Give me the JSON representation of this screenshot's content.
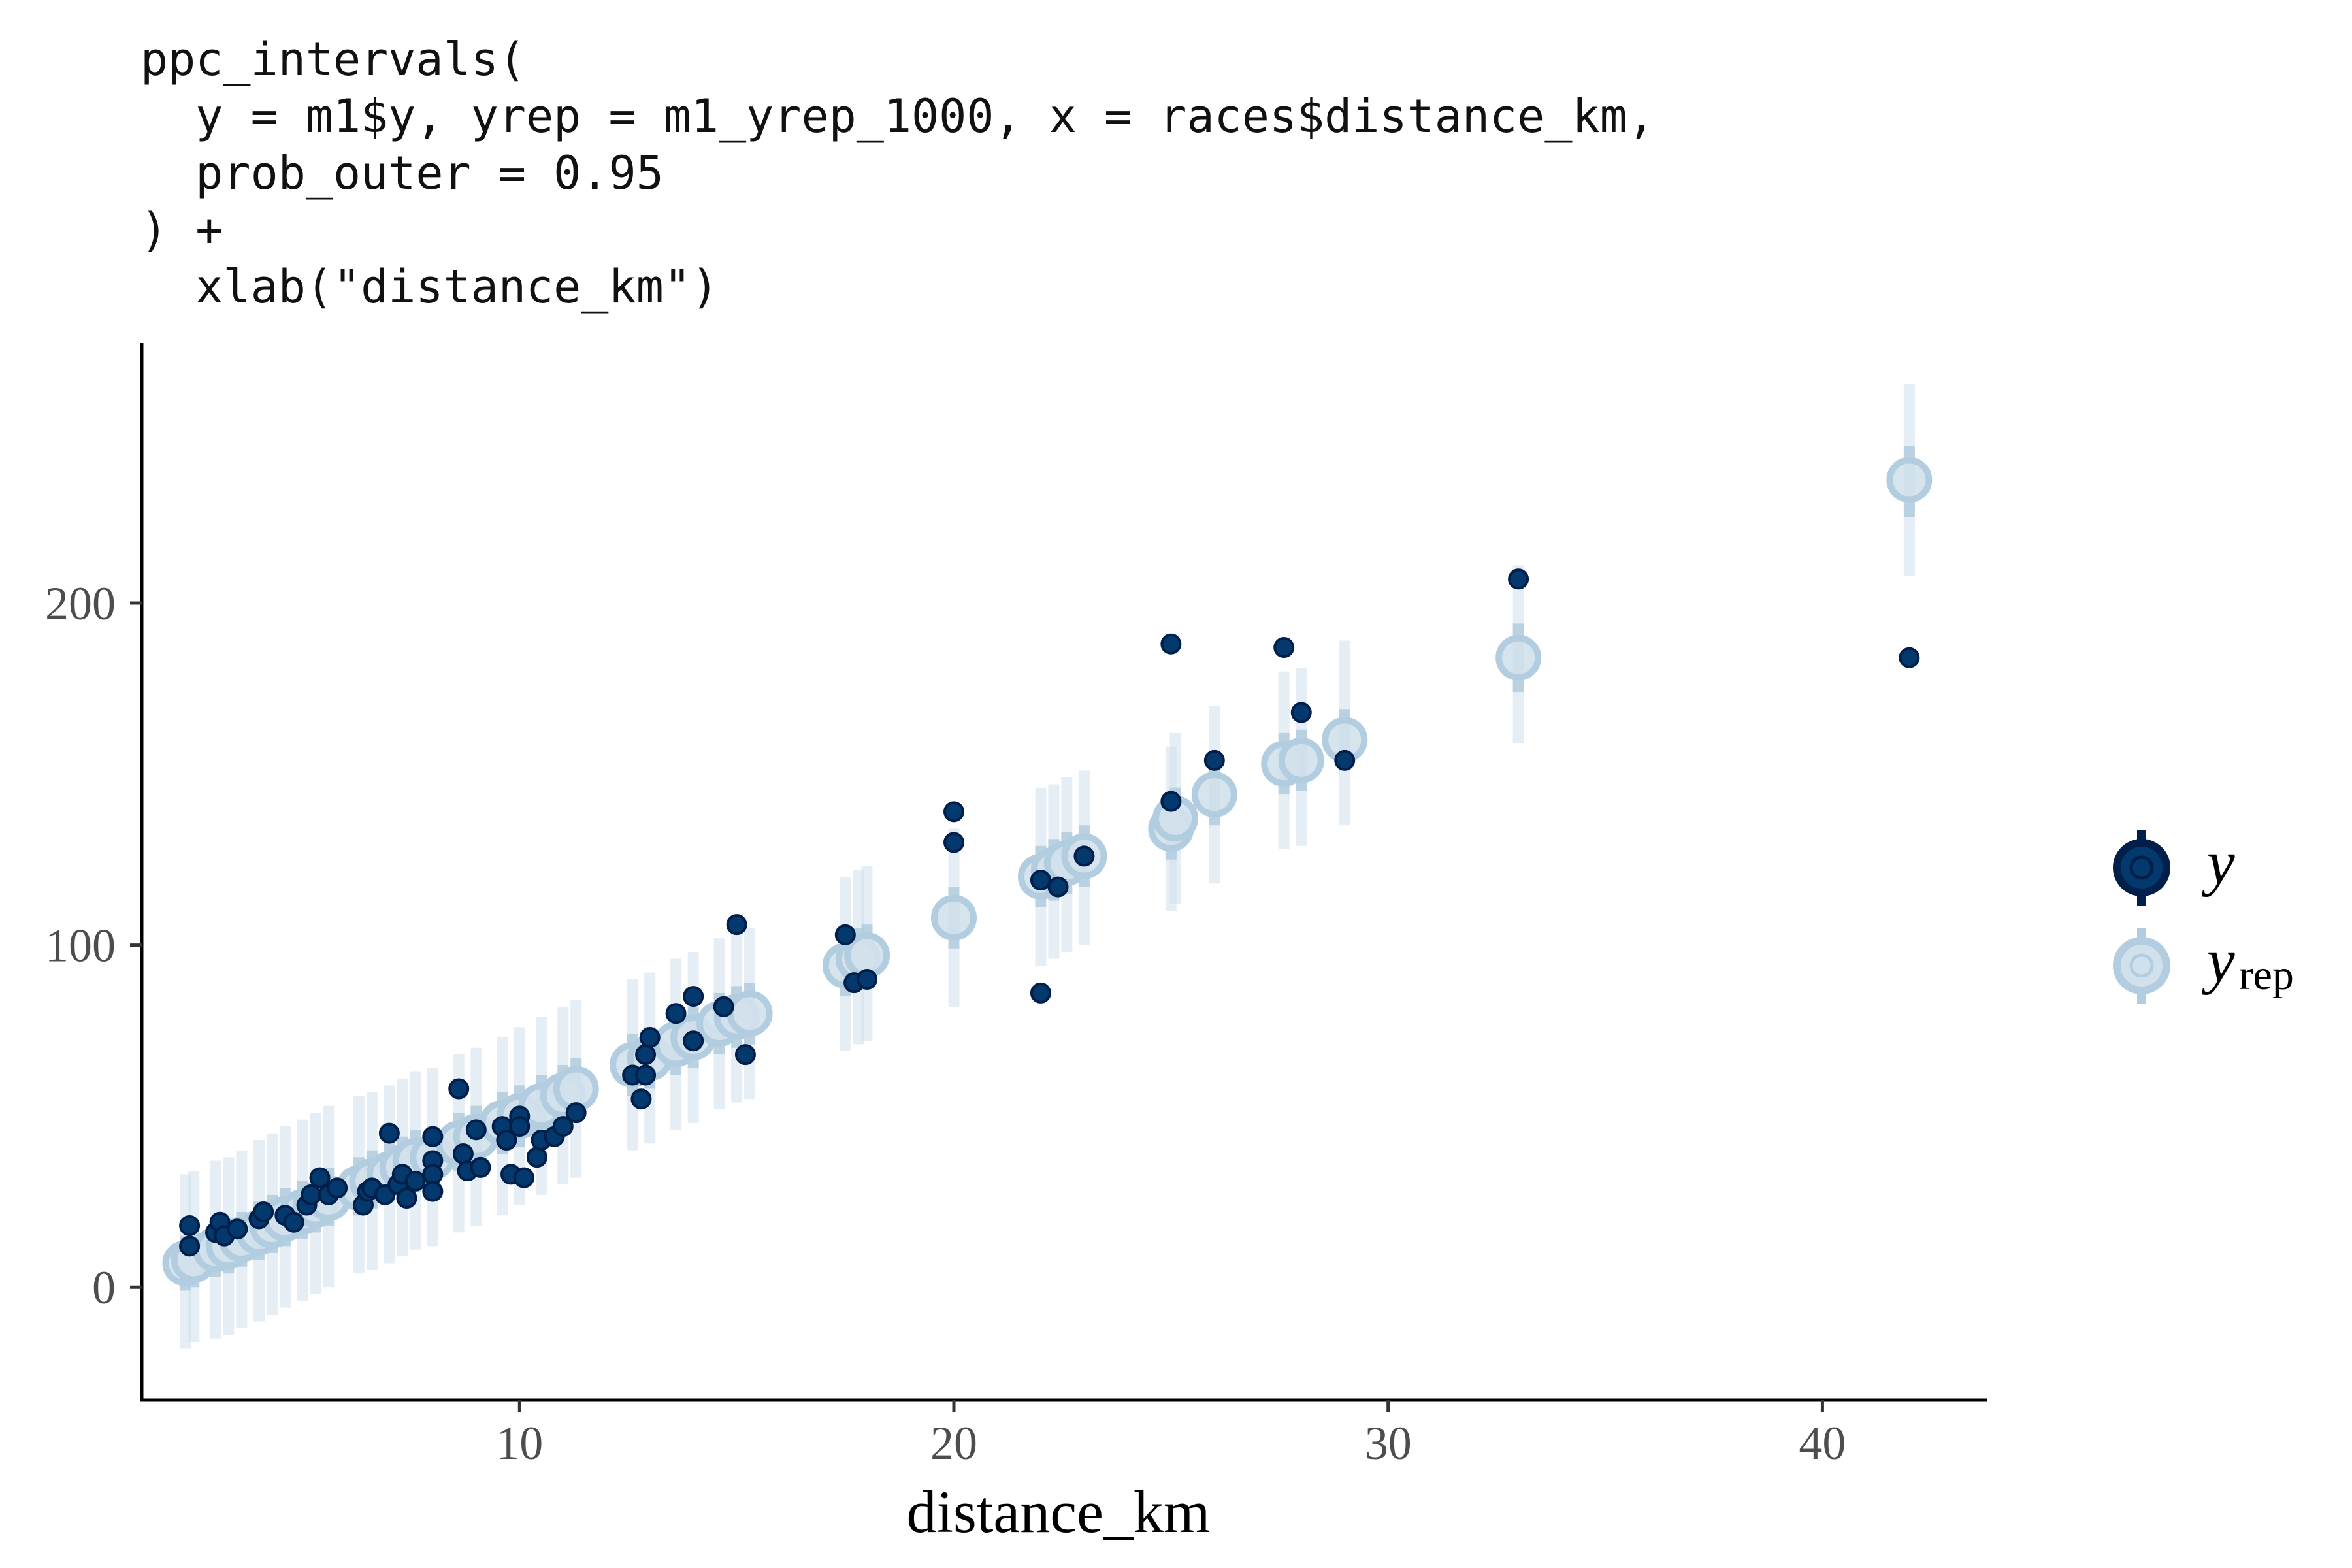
{
  "code_lines": [
    "ppc_intervals(",
    "  y = m1$y, yrep = m1_yrep_1000, x = races$distance_km,",
    "  prob_outer = 0.95",
    ") +",
    "  xlab(\"distance_km\")"
  ],
  "chart_data": {
    "type": "scatter",
    "xlabel": "distance_km",
    "ylabel": "",
    "xlim": [
      1.3,
      43.8
    ],
    "ylim": [
      -33,
      276
    ],
    "x_ticks": [
      10,
      20,
      30,
      40
    ],
    "y_ticks": [
      0,
      100,
      200
    ],
    "grid": false,
    "legend_position": "right",
    "colors": {
      "y_fill": "#03396c",
      "y_outline": "#011f4b",
      "yrep_fill": "#d1e1ec",
      "yrep_outline": "#b3cde0",
      "inner_interval": "#b3cde0",
      "outer_interval": "#d1e1ec"
    },
    "legend": [
      {
        "key": "y",
        "label": "y",
        "sub": ""
      },
      {
        "key": "yrep",
        "label": "y",
        "sub": "rep"
      }
    ],
    "series": [
      {
        "name": "yrep",
        "points": [
          {
            "x": 2.3,
            "median": 7,
            "low50": -1,
            "high50": 15,
            "low95": -18,
            "high95": 33
          },
          {
            "x": 2.5,
            "median": 8,
            "low50": 0,
            "high50": 16,
            "low95": -16,
            "high95": 34
          },
          {
            "x": 3.0,
            "median": 11,
            "low50": 3,
            "high50": 19,
            "low95": -15,
            "high95": 37
          },
          {
            "x": 3.3,
            "median": 12,
            "low50": 4,
            "high50": 20,
            "low95": -14,
            "high95": 38
          },
          {
            "x": 3.6,
            "median": 14,
            "low50": 6,
            "high50": 22,
            "low95": -12,
            "high95": 40
          },
          {
            "x": 4.0,
            "median": 16,
            "low50": 8,
            "high50": 25,
            "low95": -10,
            "high95": 43
          },
          {
            "x": 4.3,
            "median": 18,
            "low50": 10,
            "high50": 27,
            "low95": -8,
            "high95": 45
          },
          {
            "x": 4.6,
            "median": 20,
            "low50": 12,
            "high50": 29,
            "low95": -6,
            "high95": 47
          },
          {
            "x": 5.0,
            "median": 22,
            "low50": 14,
            "high50": 31,
            "low95": -4,
            "high95": 49
          },
          {
            "x": 5.3,
            "median": 24,
            "low50": 16,
            "high50": 33,
            "low95": -2,
            "high95": 51
          },
          {
            "x": 5.6,
            "median": 26,
            "low50": 18,
            "high50": 35,
            "low95": 0,
            "high95": 53
          },
          {
            "x": 6.3,
            "median": 29,
            "low50": 21,
            "high50": 38,
            "low95": 4,
            "high95": 56
          },
          {
            "x": 6.6,
            "median": 31,
            "low50": 23,
            "high50": 40,
            "low95": 5,
            "high95": 57
          },
          {
            "x": 7.0,
            "median": 33,
            "low50": 25,
            "high50": 42,
            "low95": 7,
            "high95": 59
          },
          {
            "x": 7.3,
            "median": 35,
            "low50": 27,
            "high50": 44,
            "low95": 9,
            "high95": 61
          },
          {
            "x": 7.6,
            "median": 37,
            "low50": 28,
            "high50": 46,
            "low95": 11,
            "high95": 63
          },
          {
            "x": 8.0,
            "median": 38,
            "low50": 30,
            "high50": 47,
            "low95": 12,
            "high95": 64
          },
          {
            "x": 8.6,
            "median": 42,
            "low50": 34,
            "high50": 51,
            "low95": 16,
            "high95": 68
          },
          {
            "x": 9.0,
            "median": 44,
            "low50": 35,
            "high50": 53,
            "low95": 18,
            "high95": 70
          },
          {
            "x": 9.6,
            "median": 48,
            "low50": 39,
            "high50": 57,
            "low95": 21,
            "high95": 73
          },
          {
            "x": 10.0,
            "median": 50,
            "low50": 41,
            "high50": 59,
            "low95": 24,
            "high95": 76
          },
          {
            "x": 10.5,
            "median": 53,
            "low50": 44,
            "high50": 62,
            "low95": 27,
            "high95": 79
          },
          {
            "x": 11.0,
            "median": 56,
            "low50": 47,
            "high50": 65,
            "low95": 30,
            "high95": 82
          },
          {
            "x": 11.3,
            "median": 58,
            "low50": 49,
            "high50": 67,
            "low95": 32,
            "high95": 84
          },
          {
            "x": 12.6,
            "median": 65,
            "low50": 56,
            "high50": 74,
            "low95": 40,
            "high95": 90
          },
          {
            "x": 13.0,
            "median": 67,
            "low50": 58,
            "high50": 76,
            "low95": 42,
            "high95": 92
          },
          {
            "x": 13.6,
            "median": 71,
            "low50": 62,
            "high50": 80,
            "low95": 46,
            "high95": 96
          },
          {
            "x": 14.0,
            "median": 73,
            "low50": 64,
            "high50": 82,
            "low95": 48,
            "high95": 98
          },
          {
            "x": 14.6,
            "median": 77,
            "low50": 68,
            "high50": 86,
            "low95": 52,
            "high95": 102
          },
          {
            "x": 15.0,
            "median": 79,
            "low50": 70,
            "high50": 88,
            "low95": 54,
            "high95": 104
          },
          {
            "x": 15.3,
            "median": 80,
            "low50": 71,
            "high50": 89,
            "low95": 55,
            "high95": 105
          },
          {
            "x": 17.5,
            "median": 94,
            "low50": 85,
            "high50": 103,
            "low95": 69,
            "high95": 120
          },
          {
            "x": 17.8,
            "median": 96,
            "low50": 87,
            "high50": 105,
            "low95": 71,
            "high95": 122
          },
          {
            "x": 18.0,
            "median": 97,
            "low50": 88,
            "high50": 106,
            "low95": 72,
            "high95": 123
          },
          {
            "x": 20.0,
            "median": 108,
            "low50": 99,
            "high50": 117,
            "low95": 82,
            "high95": 134
          },
          {
            "x": 22.0,
            "median": 120,
            "low50": 111,
            "high50": 129,
            "low95": 94,
            "high95": 146
          },
          {
            "x": 22.3,
            "median": 122,
            "low50": 113,
            "high50": 131,
            "low95": 96,
            "high95": 147
          },
          {
            "x": 22.6,
            "median": 124,
            "low50": 115,
            "high50": 133,
            "low95": 98,
            "high95": 149
          },
          {
            "x": 23.0,
            "median": 126,
            "low50": 117,
            "high50": 135,
            "low95": 100,
            "high95": 151
          },
          {
            "x": 25.0,
            "median": 134,
            "low50": 125,
            "high50": 143,
            "low95": 110,
            "high95": 158
          },
          {
            "x": 25.1,
            "median": 137,
            "low50": 128,
            "high50": 146,
            "low95": 112,
            "high95": 162
          },
          {
            "x": 26.0,
            "median": 144,
            "low50": 135,
            "high50": 153,
            "low95": 118,
            "high95": 170
          },
          {
            "x": 27.6,
            "median": 153,
            "low50": 144,
            "high50": 162,
            "low95": 128,
            "high95": 180
          },
          {
            "x": 28.0,
            "median": 154,
            "low50": 145,
            "high50": 163,
            "low95": 129,
            "high95": 181
          },
          {
            "x": 29.0,
            "median": 160,
            "low50": 151,
            "high50": 169,
            "low95": 135,
            "high95": 189
          },
          {
            "x": 33.0,
            "median": 184,
            "low50": 174,
            "high50": 194,
            "low95": 159,
            "high95": 211
          },
          {
            "x": 42.0,
            "median": 236,
            "low50": 225,
            "high50": 246,
            "low95": 208,
            "high95": 264
          }
        ]
      },
      {
        "name": "y",
        "points": [
          [
            2.4,
            18
          ],
          [
            2.4,
            12
          ],
          [
            3.0,
            16
          ],
          [
            3.1,
            19
          ],
          [
            3.2,
            15
          ],
          [
            3.5,
            17
          ],
          [
            4.0,
            20
          ],
          [
            4.1,
            22
          ],
          [
            4.6,
            21
          ],
          [
            4.8,
            19
          ],
          [
            5.1,
            24
          ],
          [
            5.2,
            27
          ],
          [
            5.4,
            32
          ],
          [
            5.6,
            27
          ],
          [
            5.8,
            29
          ],
          [
            6.4,
            24
          ],
          [
            6.5,
            28
          ],
          [
            6.6,
            29
          ],
          [
            6.9,
            27
          ],
          [
            7.0,
            45
          ],
          [
            7.2,
            30
          ],
          [
            7.3,
            33
          ],
          [
            7.4,
            26
          ],
          [
            7.6,
            31
          ],
          [
            8.0,
            44
          ],
          [
            8.0,
            37
          ],
          [
            8.0,
            33
          ],
          [
            8.0,
            28
          ],
          [
            8.6,
            58
          ],
          [
            8.7,
            39
          ],
          [
            8.8,
            34
          ],
          [
            9.0,
            46
          ],
          [
            9.1,
            35
          ],
          [
            9.6,
            47
          ],
          [
            9.7,
            43
          ],
          [
            9.8,
            33
          ],
          [
            10.0,
            50
          ],
          [
            10.0,
            47
          ],
          [
            10.1,
            32
          ],
          [
            10.4,
            38
          ],
          [
            10.5,
            43
          ],
          [
            10.8,
            44
          ],
          [
            11.0,
            47
          ],
          [
            11.3,
            51
          ],
          [
            12.6,
            62
          ],
          [
            12.8,
            55
          ],
          [
            12.9,
            68
          ],
          [
            12.9,
            62
          ],
          [
            13.0,
            73
          ],
          [
            13.6,
            80
          ],
          [
            14.0,
            85
          ],
          [
            14.0,
            72
          ],
          [
            14.7,
            82
          ],
          [
            15.0,
            106
          ],
          [
            15.2,
            68
          ],
          [
            17.5,
            103
          ],
          [
            17.7,
            89
          ],
          [
            18.0,
            90
          ],
          [
            20.0,
            139
          ],
          [
            20.0,
            130
          ],
          [
            22.0,
            119
          ],
          [
            22.0,
            86
          ],
          [
            22.4,
            117
          ],
          [
            23.0,
            126
          ],
          [
            25.0,
            188
          ],
          [
            25.0,
            142
          ],
          [
            26.0,
            154
          ],
          [
            27.6,
            187
          ],
          [
            28.0,
            168
          ],
          [
            29.0,
            154
          ],
          [
            33.0,
            207
          ],
          [
            42.0,
            184
          ]
        ]
      }
    ]
  }
}
